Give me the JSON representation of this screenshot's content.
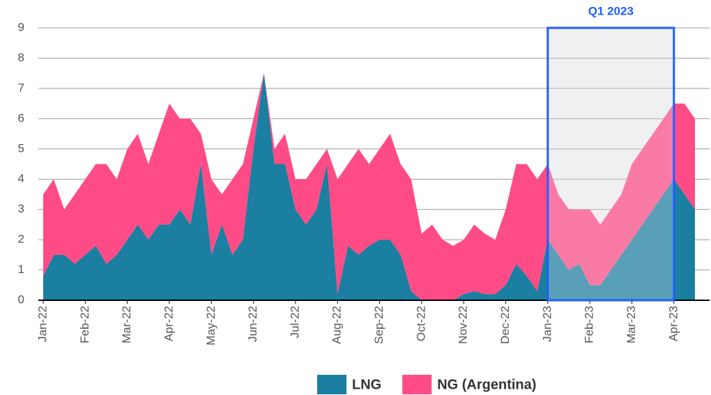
{
  "chart_data": {
    "type": "area",
    "stacked": true,
    "categories": [
      "Jan-22",
      null,
      null,
      null,
      "Feb-22",
      null,
      null,
      null,
      "Mar-22",
      null,
      null,
      null,
      "Apr-22",
      null,
      null,
      null,
      "May-22",
      null,
      null,
      null,
      "Jun-22",
      null,
      null,
      null,
      "Jul-22",
      null,
      null,
      null,
      "Aug-22",
      null,
      null,
      null,
      "Sep-22",
      null,
      null,
      null,
      "Oct-22",
      null,
      null,
      null,
      "Nov-22",
      null,
      null,
      null,
      "Dec-22",
      null,
      null,
      null,
      "Jan-23",
      null,
      null,
      null,
      "Feb-23",
      null,
      null,
      null,
      "Mar-23",
      null,
      null,
      null,
      "Apr-23",
      null,
      null
    ],
    "series": [
      {
        "name": "LNG",
        "color": "#1a7fa0",
        "values": [
          0.8,
          1.5,
          1.5,
          1.2,
          1.5,
          1.8,
          1.2,
          1.5,
          2,
          2.5,
          2,
          2.5,
          2.5,
          3,
          2.5,
          4.5,
          1.5,
          2.5,
          1.5,
          2,
          5,
          7.5,
          4.5,
          4.5,
          3,
          2.5,
          3,
          4.5,
          0.2,
          1.8,
          1.5,
          1.8,
          2,
          2,
          1.5,
          0.3,
          0,
          0,
          0,
          0,
          0.2,
          0.3,
          0.2,
          0.2,
          0.5,
          1.2,
          0.8,
          0.3,
          2,
          1.5,
          1,
          1.2,
          0.5,
          0.5,
          1,
          1.5,
          2,
          2.5,
          3,
          3.5,
          4,
          3.5,
          3
        ]
      },
      {
        "name": "NG (Argentina)",
        "color": "#ff4b86",
        "values": [
          2.7,
          2.5,
          1.5,
          2.3,
          2.5,
          2.7,
          3.3,
          2.5,
          3,
          3,
          2.5,
          3,
          4,
          3,
          3.5,
          1,
          2.5,
          1,
          2.5,
          2.5,
          1,
          0,
          0.5,
          1,
          1,
          1.5,
          1.5,
          0.5,
          3.8,
          2.7,
          3.5,
          2.7,
          3,
          3.5,
          3,
          3.7,
          2.2,
          2.5,
          2,
          1.8,
          1.8,
          2.2,
          2,
          1.8,
          2.5,
          3.3,
          3.7,
          3.7,
          2.5,
          2,
          2,
          1.8,
          2.5,
          2,
          2,
          2,
          2.5,
          2.5,
          2.5,
          2.5,
          2.5,
          3,
          3
        ]
      }
    ],
    "ylim": [
      0,
      9
    ],
    "yticks": [
      0,
      1,
      2,
      3,
      4,
      5,
      6,
      7,
      8,
      9
    ],
    "grid": true,
    "highlight": {
      "label": "Q1 2023",
      "from": 48,
      "to": 60
    },
    "legend": "bottom"
  }
}
